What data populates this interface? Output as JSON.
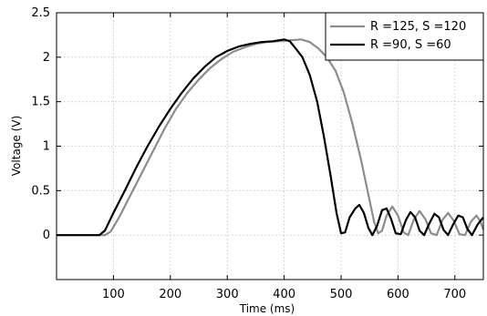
{
  "chart_data": {
    "type": "line",
    "title": "",
    "xlabel": "Time (ms)",
    "ylabel": "Voltage (V)",
    "xlim": [
      0,
      750
    ],
    "ylim": [
      -0.5,
      2.5
    ],
    "xticks": [
      100,
      200,
      300,
      400,
      500,
      600,
      700
    ],
    "yticks": [
      0,
      0.5,
      1,
      1.5,
      2,
      2.5
    ],
    "xtick_labels": [
      "100",
      "200",
      "300",
      "400",
      "500",
      "600",
      "700"
    ],
    "ytick_labels": [
      "0",
      "0.5",
      "1",
      "1.5",
      "2",
      "2.5"
    ],
    "grid": true,
    "legend_position": "top-right",
    "series": [
      {
        "name": "R =125, S =120",
        "color": "#8c8c8c",
        "points": [
          [
            0,
            0
          ],
          [
            85,
            0
          ],
          [
            95,
            0.04
          ],
          [
            110,
            0.2
          ],
          [
            130,
            0.45
          ],
          [
            150,
            0.7
          ],
          [
            170,
            0.95
          ],
          [
            190,
            1.2
          ],
          [
            210,
            1.42
          ],
          [
            230,
            1.6
          ],
          [
            250,
            1.75
          ],
          [
            270,
            1.88
          ],
          [
            290,
            1.98
          ],
          [
            310,
            2.06
          ],
          [
            330,
            2.11
          ],
          [
            350,
            2.15
          ],
          [
            370,
            2.17
          ],
          [
            390,
            2.18
          ],
          [
            410,
            2.19
          ],
          [
            430,
            2.2
          ],
          [
            445,
            2.17
          ],
          [
            460,
            2.1
          ],
          [
            475,
            2.0
          ],
          [
            490,
            1.85
          ],
          [
            505,
            1.6
          ],
          [
            520,
            1.25
          ],
          [
            535,
            0.85
          ],
          [
            548,
            0.45
          ],
          [
            558,
            0.15
          ],
          [
            565,
            0.02
          ],
          [
            572,
            0.05
          ],
          [
            580,
            0.22
          ],
          [
            590,
            0.32
          ],
          [
            600,
            0.22
          ],
          [
            610,
            0.03
          ],
          [
            618,
            0.0
          ],
          [
            628,
            0.18
          ],
          [
            638,
            0.27
          ],
          [
            648,
            0.18
          ],
          [
            658,
            0.02
          ],
          [
            668,
            0.0
          ],
          [
            678,
            0.17
          ],
          [
            688,
            0.25
          ],
          [
            698,
            0.16
          ],
          [
            708,
            0.01
          ],
          [
            718,
            0.0
          ],
          [
            728,
            0.15
          ],
          [
            738,
            0.22
          ],
          [
            745,
            0.15
          ],
          [
            750,
            0.06
          ]
        ]
      },
      {
        "name": "R =90, S =60",
        "color": "#000000",
        "points": [
          [
            0,
            0
          ],
          [
            75,
            0
          ],
          [
            85,
            0.05
          ],
          [
            100,
            0.25
          ],
          [
            120,
            0.5
          ],
          [
            140,
            0.76
          ],
          [
            160,
            1.0
          ],
          [
            180,
            1.22
          ],
          [
            200,
            1.42
          ],
          [
            220,
            1.6
          ],
          [
            240,
            1.76
          ],
          [
            260,
            1.89
          ],
          [
            280,
            2.0
          ],
          [
            300,
            2.07
          ],
          [
            320,
            2.12
          ],
          [
            340,
            2.15
          ],
          [
            360,
            2.17
          ],
          [
            380,
            2.18
          ],
          [
            400,
            2.2
          ],
          [
            410,
            2.18
          ],
          [
            420,
            2.1
          ],
          [
            432,
            2.0
          ],
          [
            445,
            1.8
          ],
          [
            458,
            1.5
          ],
          [
            470,
            1.1
          ],
          [
            482,
            0.65
          ],
          [
            492,
            0.25
          ],
          [
            500,
            0.02
          ],
          [
            507,
            0.03
          ],
          [
            515,
            0.2
          ],
          [
            525,
            0.3
          ],
          [
            532,
            0.34
          ],
          [
            540,
            0.25
          ],
          [
            548,
            0.08
          ],
          [
            555,
            0.0
          ],
          [
            563,
            0.1
          ],
          [
            572,
            0.28
          ],
          [
            580,
            0.3
          ],
          [
            588,
            0.18
          ],
          [
            596,
            0.02
          ],
          [
            605,
            0.01
          ],
          [
            614,
            0.17
          ],
          [
            622,
            0.26
          ],
          [
            630,
            0.2
          ],
          [
            638,
            0.05
          ],
          [
            646,
            0.0
          ],
          [
            655,
            0.13
          ],
          [
            664,
            0.24
          ],
          [
            672,
            0.2
          ],
          [
            680,
            0.06
          ],
          [
            688,
            0.0
          ],
          [
            697,
            0.12
          ],
          [
            706,
            0.22
          ],
          [
            714,
            0.2
          ],
          [
            722,
            0.07
          ],
          [
            730,
            0.0
          ],
          [
            740,
            0.12
          ],
          [
            750,
            0.2
          ]
        ]
      }
    ]
  }
}
